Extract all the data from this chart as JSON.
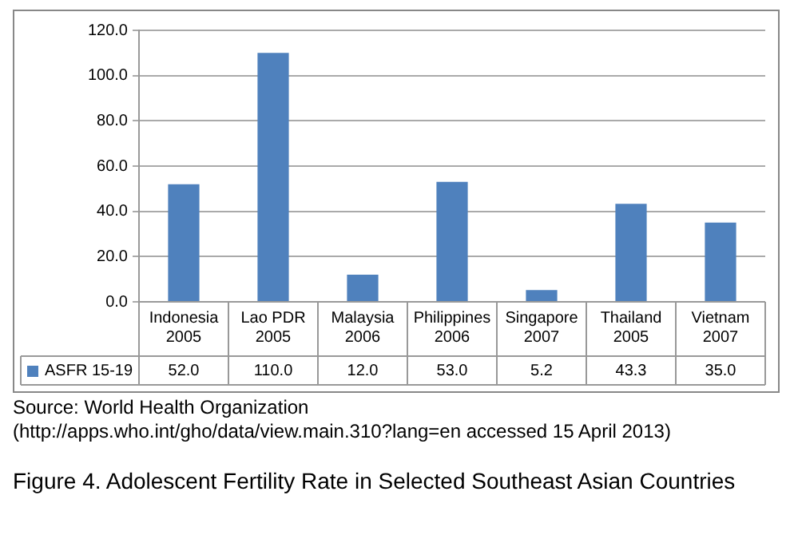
{
  "chart_data": {
    "type": "bar",
    "title": "Figure 4. Adolescent Fertility Rate in Selected Southeast Asian Countries",
    "categories": [
      "Indonesia 2005",
      "Lao PDR 2005",
      "Malaysia 2006",
      "Philippines 2006",
      "Singapore 2007",
      "Thailand 2005",
      "Vietnam 2007"
    ],
    "series": [
      {
        "name": "ASFR 15-19",
        "color": "#4f81bd",
        "values": [
          52.0,
          110.0,
          12.0,
          53.0,
          5.2,
          43.3,
          35.0
        ],
        "value_labels": [
          "52.0",
          "110.0",
          "12.0",
          "53.0",
          "5.2",
          "43.3",
          "35.0"
        ]
      }
    ],
    "ylim": [
      0,
      120
    ],
    "yticks": [
      {
        "value": 0,
        "label": "0.0"
      },
      {
        "value": 20,
        "label": "20.0"
      },
      {
        "value": 40,
        "label": "40.0"
      },
      {
        "value": 60,
        "label": "60.0"
      },
      {
        "value": 80,
        "label": "80.0"
      },
      {
        "value": 100,
        "label": "100.0"
      },
      {
        "value": 120,
        "label": "120.0"
      }
    ],
    "grid": "y",
    "legend": "bottom left",
    "annotations": [
      "Source: World Health Organization",
      "(http://apps.who.int/gho/data/view.main.310?lang=en accessed 15 April 2013)"
    ]
  }
}
